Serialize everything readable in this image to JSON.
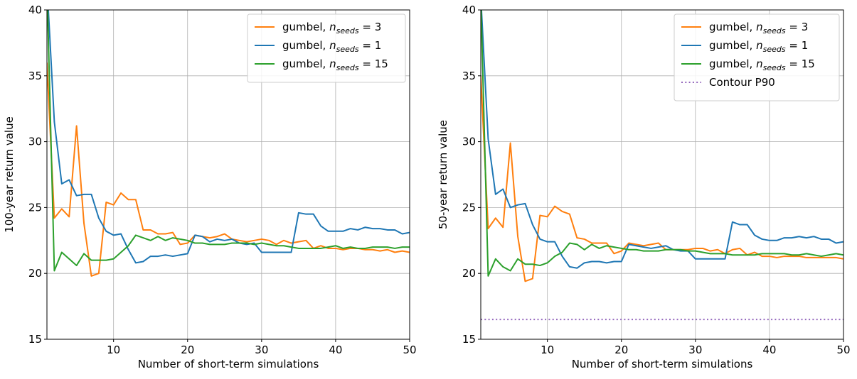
{
  "chart_data": [
    {
      "type": "line",
      "xlabel": "Number of short-term simulations",
      "ylabel": "100-year return value",
      "xlim": [
        1,
        50
      ],
      "ylim": [
        15,
        40
      ],
      "xticks": [
        10,
        20,
        30,
        40,
        50
      ],
      "yticks": [
        15,
        20,
        25,
        30,
        35,
        40
      ],
      "grid": true,
      "legend_position": "top-right",
      "series": [
        {
          "name_base": "gumbel, ",
          "name_math": "n",
          "name_sub": "seeds",
          "name_value": " = 3",
          "color": "#ff7f0e",
          "style": "solid",
          "x": [
            1,
            2,
            3,
            4,
            5,
            6,
            7,
            8,
            9,
            10,
            11,
            12,
            13,
            14,
            15,
            16,
            17,
            18,
            19,
            20,
            21,
            22,
            23,
            24,
            25,
            26,
            27,
            28,
            29,
            30,
            31,
            32,
            33,
            34,
            35,
            36,
            37,
            38,
            39,
            40,
            41,
            42,
            43,
            44,
            45,
            46,
            47,
            48,
            49,
            50
          ],
          "y": [
            36.0,
            24.2,
            24.9,
            24.3,
            31.2,
            23.8,
            19.8,
            20.0,
            25.4,
            25.2,
            26.1,
            25.6,
            25.6,
            23.3,
            23.3,
            23.0,
            23.0,
            23.1,
            22.2,
            22.3,
            22.9,
            22.8,
            22.7,
            22.8,
            23.0,
            22.6,
            22.5,
            22.4,
            22.5,
            22.6,
            22.5,
            22.2,
            22.5,
            22.3,
            22.4,
            22.5,
            21.9,
            22.1,
            21.9,
            21.9,
            21.8,
            21.9,
            21.9,
            21.8,
            21.8,
            21.7,
            21.8,
            21.6,
            21.7,
            21.6
          ]
        },
        {
          "name_base": "gumbel, ",
          "name_math": "n",
          "name_sub": "seeds",
          "name_value": " = 1",
          "color": "#1f77b4",
          "style": "solid",
          "x": [
            1,
            2,
            3,
            4,
            5,
            6,
            7,
            8,
            9,
            10,
            11,
            12,
            13,
            14,
            15,
            16,
            17,
            18,
            19,
            20,
            21,
            22,
            23,
            24,
            25,
            26,
            27,
            28,
            29,
            30,
            31,
            32,
            33,
            34,
            35,
            36,
            37,
            38,
            39,
            40,
            41,
            42,
            43,
            44,
            45,
            46,
            47,
            48,
            49,
            50
          ],
          "y": [
            42.0,
            31.5,
            26.8,
            27.1,
            25.9,
            26.0,
            26.0,
            24.2,
            23.2,
            22.9,
            23.0,
            21.8,
            20.8,
            20.9,
            21.3,
            21.3,
            21.4,
            21.3,
            21.4,
            21.5,
            22.9,
            22.8,
            22.4,
            22.6,
            22.5,
            22.6,
            22.3,
            22.2,
            22.3,
            21.6,
            21.6,
            21.6,
            21.6,
            21.6,
            24.6,
            24.5,
            24.5,
            23.6,
            23.2,
            23.2,
            23.2,
            23.4,
            23.3,
            23.5,
            23.4,
            23.4,
            23.3,
            23.3,
            23.0,
            23.1
          ]
        },
        {
          "name_base": "gumbel, ",
          "name_math": "n",
          "name_sub": "seeds",
          "name_value": " = 15",
          "color": "#2ca02c",
          "style": "solid",
          "x": [
            1,
            2,
            3,
            4,
            5,
            6,
            7,
            8,
            9,
            10,
            11,
            12,
            13,
            14,
            15,
            16,
            17,
            18,
            19,
            20,
            21,
            22,
            23,
            24,
            25,
            26,
            27,
            28,
            29,
            30,
            31,
            32,
            33,
            34,
            35,
            36,
            37,
            38,
            39,
            40,
            41,
            42,
            43,
            44,
            45,
            46,
            47,
            48,
            49,
            50
          ],
          "y": [
            42.0,
            20.2,
            21.6,
            21.1,
            20.6,
            21.5,
            21.0,
            21.0,
            21.0,
            21.1,
            21.6,
            22.1,
            22.9,
            22.7,
            22.5,
            22.8,
            22.5,
            22.7,
            22.6,
            22.5,
            22.3,
            22.3,
            22.2,
            22.2,
            22.2,
            22.3,
            22.3,
            22.3,
            22.2,
            22.3,
            22.2,
            22.1,
            22.1,
            22.0,
            21.9,
            21.9,
            21.9,
            21.9,
            22.0,
            22.1,
            21.9,
            22.0,
            21.9,
            21.9,
            22.0,
            22.0,
            22.0,
            21.9,
            22.0,
            22.0
          ]
        }
      ]
    },
    {
      "type": "line",
      "xlabel": "Number of short-term simulations",
      "ylabel": "50-year return value",
      "xlim": [
        1,
        50
      ],
      "ylim": [
        15,
        40
      ],
      "xticks": [
        10,
        20,
        30,
        40,
        50
      ],
      "yticks": [
        15,
        20,
        25,
        30,
        35,
        40
      ],
      "grid": true,
      "legend_position": "top-right",
      "series": [
        {
          "name_base": "gumbel, ",
          "name_math": "n",
          "name_sub": "seeds",
          "name_value": " = 3",
          "color": "#ff7f0e",
          "style": "solid",
          "x": [
            1,
            2,
            3,
            4,
            5,
            6,
            7,
            8,
            9,
            10,
            11,
            12,
            13,
            14,
            15,
            16,
            17,
            18,
            19,
            20,
            21,
            22,
            23,
            24,
            25,
            26,
            27,
            28,
            29,
            30,
            31,
            32,
            33,
            34,
            35,
            36,
            37,
            38,
            39,
            40,
            41,
            42,
            43,
            44,
            45,
            46,
            47,
            48,
            49,
            50
          ],
          "y": [
            35.0,
            23.4,
            24.2,
            23.5,
            29.9,
            22.8,
            19.4,
            19.6,
            24.4,
            24.3,
            25.1,
            24.7,
            24.5,
            22.7,
            22.6,
            22.3,
            22.3,
            22.3,
            21.5,
            21.7,
            22.3,
            22.2,
            22.1,
            22.2,
            22.3,
            21.8,
            21.8,
            21.8,
            21.8,
            21.9,
            21.9,
            21.7,
            21.8,
            21.5,
            21.8,
            21.9,
            21.4,
            21.6,
            21.3,
            21.3,
            21.2,
            21.3,
            21.3,
            21.3,
            21.2,
            21.2,
            21.2,
            21.2,
            21.2,
            21.1
          ]
        },
        {
          "name_base": "gumbel, ",
          "name_math": "n",
          "name_sub": "seeds",
          "name_value": " = 1",
          "color": "#1f77b4",
          "style": "solid",
          "x": [
            1,
            2,
            3,
            4,
            5,
            6,
            7,
            8,
            9,
            10,
            11,
            12,
            13,
            14,
            15,
            16,
            17,
            18,
            19,
            20,
            21,
            22,
            23,
            24,
            25,
            26,
            27,
            28,
            29,
            30,
            31,
            32,
            33,
            34,
            35,
            36,
            37,
            38,
            39,
            40,
            41,
            42,
            43,
            44,
            45,
            46,
            47,
            48,
            49,
            50
          ],
          "y": [
            41.0,
            30.2,
            26.0,
            26.4,
            25.0,
            25.2,
            25.3,
            23.7,
            22.6,
            22.4,
            22.4,
            21.3,
            20.5,
            20.4,
            20.8,
            20.9,
            20.9,
            20.8,
            20.9,
            20.9,
            22.2,
            22.1,
            22.0,
            21.9,
            22.0,
            22.1,
            21.8,
            21.7,
            21.7,
            21.1,
            21.1,
            21.1,
            21.1,
            21.1,
            23.9,
            23.7,
            23.7,
            22.9,
            22.6,
            22.5,
            22.5,
            22.7,
            22.7,
            22.8,
            22.7,
            22.8,
            22.6,
            22.6,
            22.3,
            22.4
          ]
        },
        {
          "name_base": "gumbel, ",
          "name_math": "n",
          "name_sub": "seeds",
          "name_value": " = 15",
          "color": "#2ca02c",
          "style": "solid",
          "x": [
            1,
            2,
            3,
            4,
            5,
            6,
            7,
            8,
            9,
            10,
            11,
            12,
            13,
            14,
            15,
            16,
            17,
            18,
            19,
            20,
            21,
            22,
            23,
            24,
            25,
            26,
            27,
            28,
            29,
            30,
            31,
            32,
            33,
            34,
            35,
            36,
            37,
            38,
            39,
            40,
            41,
            42,
            43,
            44,
            45,
            46,
            47,
            48,
            49,
            50
          ],
          "y": [
            41.0,
            19.8,
            21.1,
            20.5,
            20.2,
            21.1,
            20.7,
            20.7,
            20.6,
            20.8,
            21.3,
            21.6,
            22.3,
            22.2,
            21.8,
            22.2,
            21.9,
            22.1,
            22.0,
            21.9,
            21.8,
            21.8,
            21.7,
            21.7,
            21.7,
            21.8,
            21.8,
            21.8,
            21.7,
            21.7,
            21.6,
            21.5,
            21.5,
            21.5,
            21.4,
            21.4,
            21.4,
            21.4,
            21.5,
            21.5,
            21.5,
            21.5,
            21.4,
            21.4,
            21.5,
            21.4,
            21.3,
            21.4,
            21.5,
            21.4
          ]
        },
        {
          "name_base": "Contour P90",
          "name_math": "",
          "name_sub": "",
          "name_value": "",
          "color": "#9467bd",
          "style": "dotted",
          "x": [
            1,
            50
          ],
          "y": [
            16.5,
            16.5
          ]
        }
      ]
    }
  ]
}
